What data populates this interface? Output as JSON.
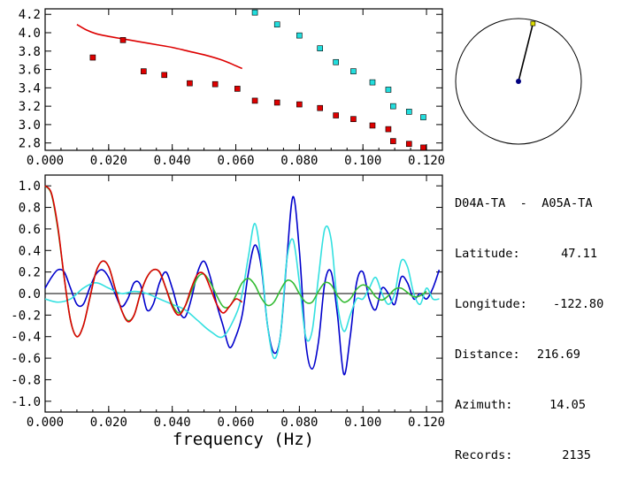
{
  "station_pair": "D04A-TA  -  A05A-TA",
  "info_rows": [
    {
      "label": "Latitude:",
      "value": "47.11"
    },
    {
      "label": "Longitude:",
      "value": "-122.80"
    },
    {
      "label": "Distance:",
      "value": "216.69"
    },
    {
      "label": "Azimuth:",
      "value": "14.05"
    },
    {
      "label": "Records:",
      "value": "2135"
    }
  ],
  "colors": {
    "red": "#dd0000",
    "cyan": "#22dddd",
    "blue": "#0000cc",
    "green": "#33bb33",
    "lightcyan": "#33e0e0"
  },
  "chart_data": [
    {
      "type": "scatter",
      "title": "",
      "xlabel": "",
      "ylabel": "",
      "xlim": [
        0,
        0.125
      ],
      "ylim": [
        2.72,
        4.26
      ],
      "x_ticks": [
        "0.000",
        "0.020",
        "0.040",
        "0.060",
        "0.080",
        "0.100",
        "0.120"
      ],
      "y_ticks": [
        "2.8",
        "3.0",
        "3.2",
        "3.4",
        "3.6",
        "3.8",
        "4.0",
        "4.2"
      ],
      "series": [
        {
          "name": "red-curve",
          "kind": "line",
          "color": "#dd0000",
          "x": [
            0.01,
            0.013,
            0.016,
            0.02,
            0.025,
            0.03,
            0.035,
            0.04,
            0.045,
            0.05,
            0.055,
            0.058,
            0.06,
            0.062
          ],
          "y": [
            4.09,
            4.03,
            3.99,
            3.96,
            3.93,
            3.9,
            3.87,
            3.84,
            3.8,
            3.76,
            3.71,
            3.67,
            3.64,
            3.61
          ]
        },
        {
          "name": "red-points",
          "kind": "points",
          "color": "#dd0000",
          "x": [
            0.015,
            0.0245,
            0.031,
            0.0375,
            0.0455,
            0.0535,
            0.0605,
            0.066,
            0.073,
            0.08,
            0.0865,
            0.0915,
            0.097,
            0.103,
            0.108,
            0.1095,
            0.1145,
            0.119
          ],
          "y": [
            3.73,
            3.92,
            3.58,
            3.54,
            3.45,
            3.44,
            3.39,
            3.26,
            3.24,
            3.22,
            3.18,
            3.1,
            3.06,
            2.99,
            2.95,
            2.82,
            2.79,
            2.75
          ]
        },
        {
          "name": "cyan-points",
          "kind": "points",
          "color": "#22dddd",
          "x": [
            0.066,
            0.073,
            0.08,
            0.0865,
            0.0915,
            0.097,
            0.103,
            0.108,
            0.1095,
            0.1145,
            0.119
          ],
          "y": [
            4.22,
            4.09,
            3.97,
            3.83,
            3.68,
            3.58,
            3.46,
            3.38,
            3.2,
            3.14,
            3.08
          ]
        }
      ]
    },
    {
      "type": "line",
      "title": "",
      "xlabel": "frequency (Hz)",
      "ylabel": "",
      "xlim": [
        0,
        0.125
      ],
      "ylim": [
        -1.1,
        1.1
      ],
      "x_ticks": [
        "0.000",
        "0.020",
        "0.040",
        "0.060",
        "0.080",
        "0.100",
        "0.120"
      ],
      "y_ticks": [
        "1.0",
        "0.8",
        "0.6",
        "0.4",
        "0.2",
        "0.0",
        "-0.2",
        "-0.4",
        "-0.6",
        "-0.8",
        "-1.0"
      ],
      "series": [
        {
          "name": "blue",
          "color": "#0000cc",
          "x": [
            0.0,
            0.002,
            0.004,
            0.006,
            0.008,
            0.01,
            0.012,
            0.014,
            0.016,
            0.018,
            0.02,
            0.022,
            0.024,
            0.026,
            0.028,
            0.03,
            0.032,
            0.034,
            0.036,
            0.038,
            0.04,
            0.042,
            0.044,
            0.046,
            0.048,
            0.05,
            0.052,
            0.054,
            0.056,
            0.058,
            0.06,
            0.062,
            0.064,
            0.066,
            0.068,
            0.07,
            0.072,
            0.074,
            0.076,
            0.078,
            0.08,
            0.082,
            0.084,
            0.086,
            0.088,
            0.09,
            0.092,
            0.094,
            0.096,
            0.098,
            0.1,
            0.102,
            0.104,
            0.106,
            0.108,
            0.11,
            0.112,
            0.114,
            0.116,
            0.118,
            0.12,
            0.122,
            0.124
          ],
          "y": [
            0.05,
            0.15,
            0.22,
            0.2,
            0.05,
            -0.1,
            -0.1,
            0.05,
            0.18,
            0.22,
            0.15,
            0.0,
            -0.12,
            -0.05,
            0.1,
            0.08,
            -0.15,
            -0.1,
            0.1,
            0.2,
            0.05,
            -0.15,
            -0.22,
            -0.05,
            0.2,
            0.3,
            0.15,
            -0.1,
            -0.3,
            -0.5,
            -0.4,
            -0.2,
            0.2,
            0.45,
            0.25,
            -0.3,
            -0.55,
            -0.4,
            0.3,
            0.9,
            0.4,
            -0.45,
            -0.7,
            -0.45,
            0.1,
            0.2,
            -0.2,
            -0.75,
            -0.4,
            0.1,
            0.2,
            -0.05,
            -0.15,
            0.05,
            0.0,
            -0.1,
            0.15,
            0.1,
            -0.05,
            0.0,
            -0.05,
            0.05,
            0.22
          ]
        },
        {
          "name": "cyan",
          "color": "#33e0e0",
          "x": [
            0.0,
            0.004,
            0.008,
            0.012,
            0.016,
            0.02,
            0.024,
            0.028,
            0.032,
            0.036,
            0.04,
            0.044,
            0.048,
            0.052,
            0.056,
            0.06,
            0.062,
            0.064,
            0.066,
            0.068,
            0.07,
            0.072,
            0.074,
            0.076,
            0.078,
            0.08,
            0.082,
            0.084,
            0.086,
            0.088,
            0.09,
            0.092,
            0.094,
            0.096,
            0.098,
            0.1,
            0.102,
            0.104,
            0.106,
            0.108,
            0.11,
            0.112,
            0.114,
            0.116,
            0.118,
            0.12,
            0.122,
            0.124
          ],
          "y": [
            -0.05,
            -0.08,
            -0.05,
            0.05,
            0.1,
            0.05,
            0.0,
            0.02,
            0.0,
            -0.05,
            -0.1,
            -0.15,
            -0.25,
            -0.35,
            -0.4,
            -0.2,
            0.0,
            0.35,
            0.65,
            0.3,
            -0.3,
            -0.6,
            -0.4,
            0.3,
            0.5,
            0.1,
            -0.4,
            -0.35,
            0.15,
            0.6,
            0.5,
            -0.1,
            -0.35,
            -0.2,
            -0.05,
            -0.05,
            0.05,
            0.15,
            0.0,
            -0.1,
            0.0,
            0.3,
            0.25,
            0.0,
            -0.1,
            0.05,
            -0.05,
            -0.05
          ]
        },
        {
          "name": "green",
          "color": "#33bb33",
          "x": [
            0.0,
            0.002,
            0.004,
            0.006,
            0.008,
            0.01,
            0.012,
            0.014,
            0.016,
            0.018,
            0.02,
            0.022,
            0.024,
            0.026,
            0.028,
            0.03,
            0.032,
            0.034,
            0.036,
            0.038,
            0.04,
            0.042,
            0.044,
            0.046,
            0.048,
            0.05,
            0.052,
            0.054,
            0.056,
            0.058,
            0.06,
            0.062,
            0.064,
            0.066,
            0.068,
            0.07,
            0.072,
            0.074,
            0.076,
            0.078,
            0.08,
            0.082,
            0.084,
            0.086,
            0.088,
            0.09,
            0.092,
            0.094,
            0.096,
            0.098,
            0.1,
            0.102,
            0.104,
            0.106,
            0.108,
            0.11,
            0.112,
            0.114,
            0.116,
            0.118,
            0.12
          ],
          "y": [
            1.0,
            0.92,
            0.6,
            0.15,
            -0.25,
            -0.4,
            -0.3,
            -0.05,
            0.2,
            0.3,
            0.25,
            0.05,
            -0.15,
            -0.25,
            -0.2,
            0.0,
            0.15,
            0.22,
            0.2,
            0.05,
            -0.1,
            -0.18,
            -0.12,
            0.02,
            0.15,
            0.18,
            0.1,
            -0.02,
            -0.12,
            -0.12,
            -0.02,
            0.1,
            0.14,
            0.08,
            -0.04,
            -0.11,
            -0.08,
            0.03,
            0.12,
            0.1,
            0.0,
            -0.08,
            -0.08,
            0.02,
            0.1,
            0.08,
            -0.02,
            -0.08,
            -0.05,
            0.04,
            0.08,
            0.05,
            -0.03,
            -0.06,
            -0.02,
            0.04,
            0.05,
            0.01,
            -0.03,
            -0.02,
            0.02
          ]
        },
        {
          "name": "red",
          "color": "#dd0000",
          "x": [
            0.0,
            0.002,
            0.004,
            0.006,
            0.008,
            0.01,
            0.012,
            0.014,
            0.016,
            0.018,
            0.02,
            0.022,
            0.024,
            0.026,
            0.028,
            0.03,
            0.032,
            0.034,
            0.036,
            0.038,
            0.04,
            0.042,
            0.044,
            0.046,
            0.048,
            0.05,
            0.052,
            0.054,
            0.056,
            0.058,
            0.06,
            0.062
          ],
          "y": [
            1.0,
            0.93,
            0.62,
            0.15,
            -0.25,
            -0.4,
            -0.3,
            -0.05,
            0.2,
            0.3,
            0.25,
            0.05,
            -0.15,
            -0.26,
            -0.2,
            0.0,
            0.15,
            0.22,
            0.2,
            0.05,
            -0.12,
            -0.2,
            -0.12,
            0.05,
            0.18,
            0.18,
            0.05,
            -0.1,
            -0.18,
            -0.12,
            -0.05,
            -0.08
          ]
        }
      ]
    }
  ],
  "azimuth_dial": {
    "azimuth_deg": 14.05,
    "range_fraction": 0.95,
    "mark_colors": {
      "needle": "#000000",
      "origin": "#000080",
      "tip": "#dddd00"
    }
  }
}
